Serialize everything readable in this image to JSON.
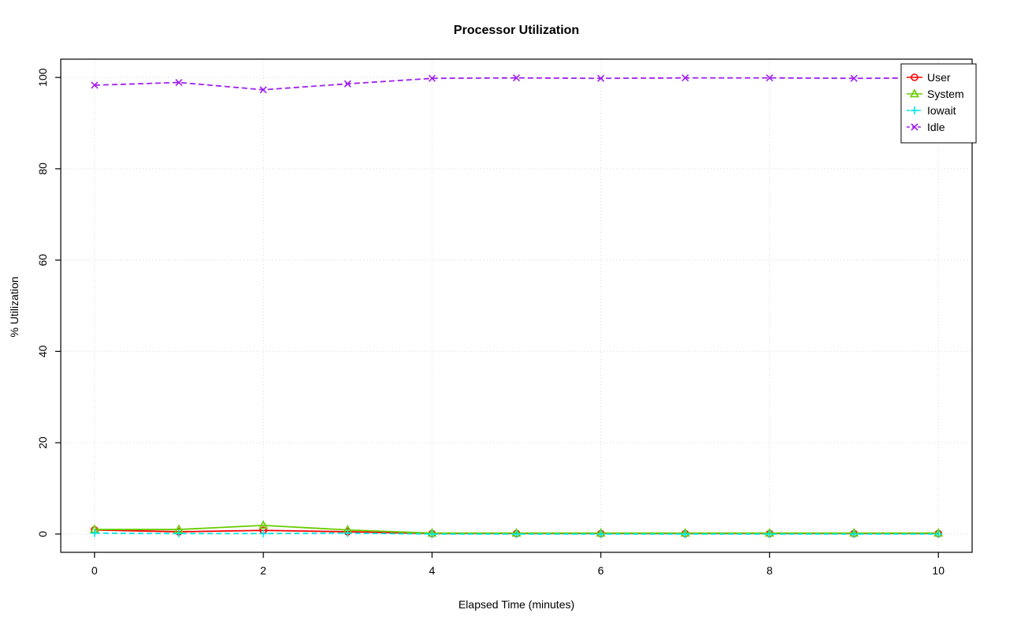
{
  "chart_data": {
    "type": "line",
    "title": "Processor Utilization",
    "xlabel": "Elapsed Time (minutes)",
    "ylabel": "% Utilization",
    "x": [
      0,
      1,
      2,
      3,
      4,
      5,
      6,
      7,
      8,
      9,
      10
    ],
    "xticks": [
      0,
      2,
      4,
      6,
      8,
      10
    ],
    "yticks": [
      0,
      20,
      40,
      60,
      80,
      100
    ],
    "xlim": [
      -0.4,
      10.4
    ],
    "ylim": [
      -4,
      104
    ],
    "grid": true,
    "grid_color": "#d9d9d9",
    "legend_position": "top-right",
    "series": [
      {
        "name": "User",
        "color": "#ff0000",
        "marker": "circle",
        "line": "solid",
        "values": [
          0.9,
          0.5,
          0.8,
          0.5,
          0.1,
          0.1,
          0.1,
          0.1,
          0.1,
          0.1,
          0.1
        ]
      },
      {
        "name": "System",
        "color": "#66cd00",
        "marker": "triangle",
        "line": "solid",
        "values": [
          1.0,
          1.0,
          1.9,
          0.9,
          0.2,
          0.2,
          0.2,
          0.2,
          0.2,
          0.2,
          0.2
        ]
      },
      {
        "name": "Iowait",
        "color": "#00e5e5",
        "marker": "plus",
        "line": "dashed",
        "values": [
          0.2,
          0.1,
          0.1,
          0.2,
          0.0,
          0.0,
          0.0,
          0.0,
          0.0,
          0.0,
          0.0
        ]
      },
      {
        "name": "Idle",
        "color": "#a020f0",
        "marker": "x",
        "line": "dashed",
        "values": [
          98.3,
          98.9,
          97.3,
          98.6,
          99.8,
          99.9,
          99.8,
          99.9,
          99.9,
          99.8,
          99.9
        ]
      }
    ]
  }
}
